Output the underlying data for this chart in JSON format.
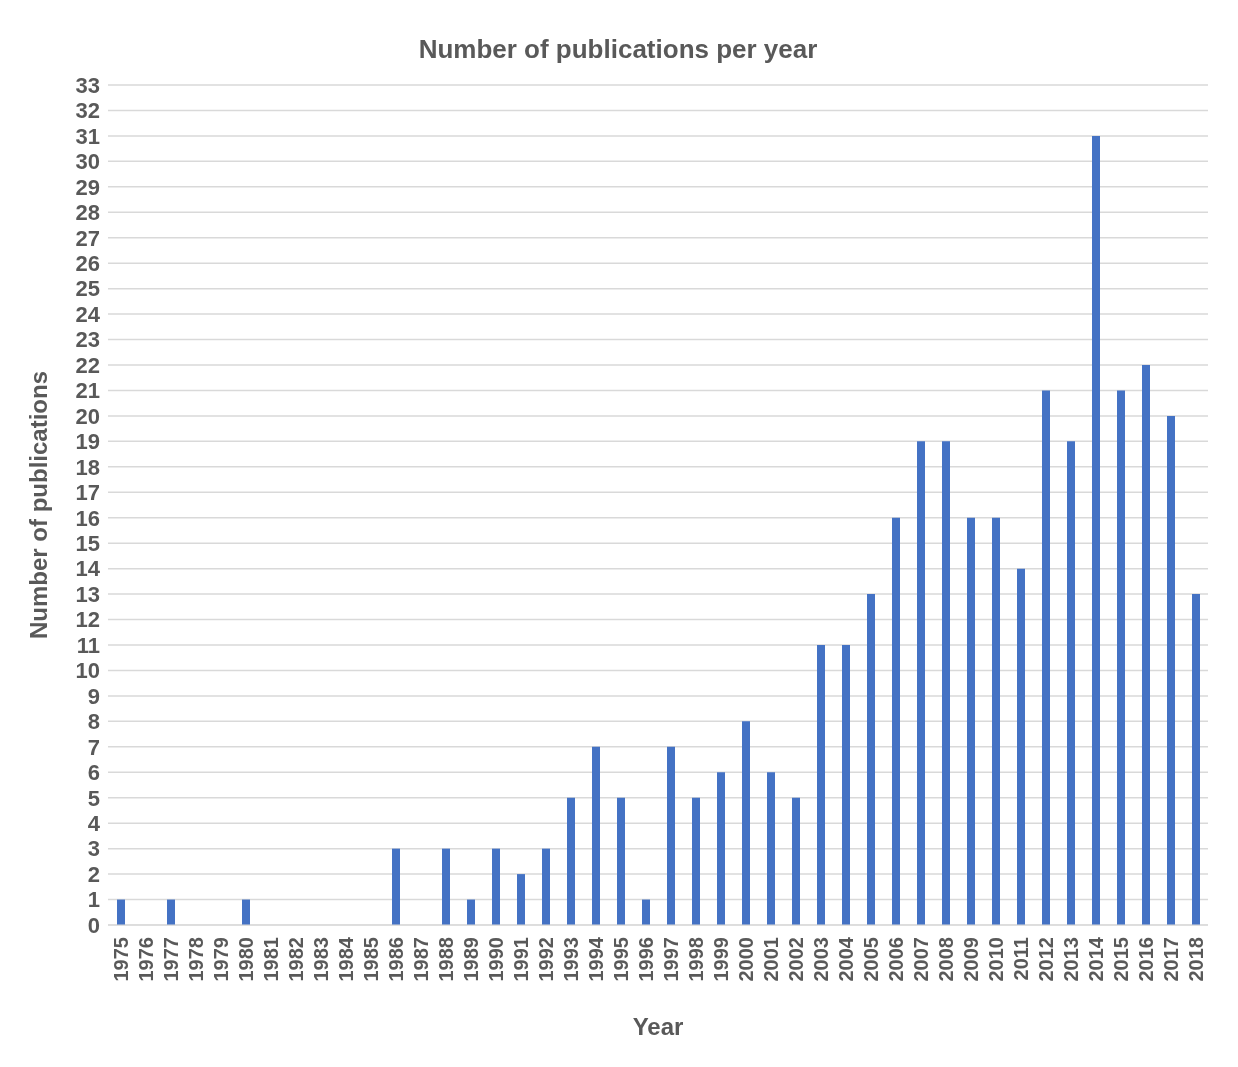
{
  "chart_data": {
    "type": "bar",
    "title": "Number of publications per year",
    "xlabel": "Year",
    "ylabel": "Number of publications",
    "categories": [
      "1975",
      "1976",
      "1977",
      "1978",
      "1979",
      "1980",
      "1981",
      "1982",
      "1983",
      "1984",
      "1985",
      "1986",
      "1987",
      "1988",
      "1989",
      "1990",
      "1991",
      "1992",
      "1993",
      "1994",
      "1995",
      "1996",
      "1997",
      "1998",
      "1999",
      "2000",
      "2001",
      "2002",
      "2003",
      "2004",
      "2005",
      "2006",
      "2007",
      "2008",
      "2009",
      "2010",
      "2011",
      "2012",
      "2013",
      "2014",
      "2015",
      "2016",
      "2017",
      "2018"
    ],
    "values": [
      1,
      0,
      1,
      0,
      0,
      1,
      0,
      0,
      0,
      0,
      0,
      3,
      0,
      3,
      1,
      3,
      2,
      3,
      5,
      7,
      5,
      1,
      7,
      5,
      6,
      8,
      6,
      5,
      11,
      11,
      13,
      16,
      19,
      19,
      16,
      16,
      14,
      21,
      19,
      31,
      21,
      22,
      20,
      13
    ],
    "color": "#4472c4",
    "ylim": [
      0,
      33
    ],
    "yticks": [
      0,
      1,
      2,
      3,
      4,
      5,
      6,
      7,
      8,
      9,
      10,
      11,
      12,
      13,
      14,
      15,
      16,
      17,
      18,
      19,
      20,
      21,
      22,
      23,
      24,
      25,
      26,
      27,
      28,
      29,
      30,
      31,
      32,
      33
    ],
    "grid": "y"
  }
}
